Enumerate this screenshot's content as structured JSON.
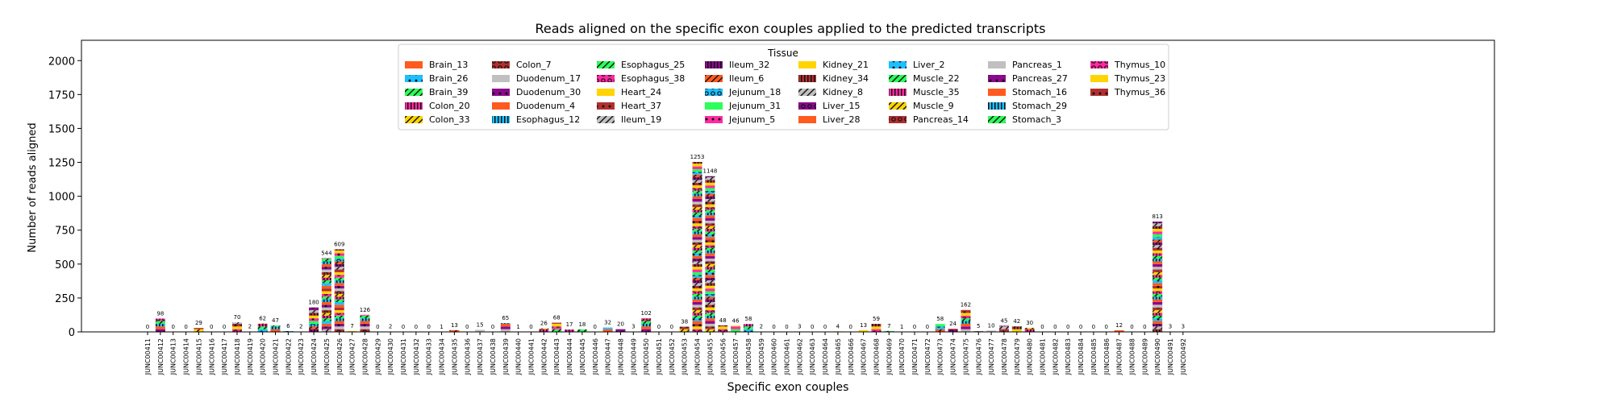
{
  "chart_data": {
    "type": "bar",
    "title": "Reads aligned on the specific exon couples applied to the predicted transcripts",
    "xlabel": "Specific exon couples",
    "ylabel": "Number of reads aligned",
    "ylim": [
      0,
      2150
    ],
    "yticks": [
      0,
      250,
      500,
      750,
      1000,
      1250,
      1500,
      1750,
      2000
    ],
    "grid": false,
    "stacked": true,
    "legend": {
      "title": "Tissue",
      "placement": "top-center",
      "entries": [
        {
          "name": "Brain_13",
          "color": "#ff5a1f",
          "hatch": "none"
        },
        {
          "name": "Brain_26",
          "color": "#1fbfff",
          "hatch": "dot"
        },
        {
          "name": "Brain_39",
          "color": "#2bff5a",
          "hatch": "slash"
        },
        {
          "name": "Colon_20",
          "color": "#ff2aa0",
          "hatch": "bars"
        },
        {
          "name": "Colon_33",
          "color": "#ffd400",
          "hatch": "slash"
        },
        {
          "name": "Colon_7",
          "color": "#b03030",
          "hatch": "ring"
        },
        {
          "name": "Duodenum_17",
          "color": "#c0c0c0",
          "hatch": "none"
        },
        {
          "name": "Duodenum_30",
          "color": "#8b0a8b",
          "hatch": "dot"
        },
        {
          "name": "Duodenum_4",
          "color": "#ff5a1f",
          "hatch": "none"
        },
        {
          "name": "Esophagus_12",
          "color": "#1fbfff",
          "hatch": "bars"
        },
        {
          "name": "Esophagus_25",
          "color": "#2bff5a",
          "hatch": "slash"
        },
        {
          "name": "Esophagus_38",
          "color": "#ff2aa0",
          "hatch": "ring"
        },
        {
          "name": "Heart_24",
          "color": "#ffd400",
          "hatch": "none"
        },
        {
          "name": "Heart_37",
          "color": "#b03030",
          "hatch": "dot"
        },
        {
          "name": "Ileum_19",
          "color": "#c0c0c0",
          "hatch": "slash"
        },
        {
          "name": "Ileum_32",
          "color": "#8b0a8b",
          "hatch": "bars"
        },
        {
          "name": "Ileum_6",
          "color": "#ff5a1f",
          "hatch": "slash"
        },
        {
          "name": "Jejunum_18",
          "color": "#1fbfff",
          "hatch": "ring"
        },
        {
          "name": "Jejunum_31",
          "color": "#2bff5a",
          "hatch": "none"
        },
        {
          "name": "Jejunum_5",
          "color": "#ff2aa0",
          "hatch": "dot"
        },
        {
          "name": "Kidney_21",
          "color": "#ffd400",
          "hatch": "none"
        },
        {
          "name": "Kidney_34",
          "color": "#b03030",
          "hatch": "bars"
        },
        {
          "name": "Kidney_8",
          "color": "#c0c0c0",
          "hatch": "slash"
        },
        {
          "name": "Liver_15",
          "color": "#8b0a8b",
          "hatch": "ring"
        },
        {
          "name": "Liver_28",
          "color": "#ff5a1f",
          "hatch": "none"
        },
        {
          "name": "Liver_2",
          "color": "#1fbfff",
          "hatch": "dot"
        },
        {
          "name": "Muscle_22",
          "color": "#2bff5a",
          "hatch": "slash"
        },
        {
          "name": "Muscle_35",
          "color": "#ff2aa0",
          "hatch": "bars"
        },
        {
          "name": "Muscle_9",
          "color": "#ffd400",
          "hatch": "slash"
        },
        {
          "name": "Pancreas_14",
          "color": "#b03030",
          "hatch": "ring"
        },
        {
          "name": "Pancreas_1",
          "color": "#c0c0c0",
          "hatch": "none"
        },
        {
          "name": "Pancreas_27",
          "color": "#8b0a8b",
          "hatch": "dot"
        },
        {
          "name": "Stomach_16",
          "color": "#ff5a1f",
          "hatch": "none"
        },
        {
          "name": "Stomach_29",
          "color": "#1fbfff",
          "hatch": "bars"
        },
        {
          "name": "Stomach_3",
          "color": "#2bff5a",
          "hatch": "slash"
        },
        {
          "name": "Thymus_10",
          "color": "#ff2aa0",
          "hatch": "ring"
        },
        {
          "name": "Thymus_23",
          "color": "#ffd400",
          "hatch": "none"
        },
        {
          "name": "Thymus_36",
          "color": "#b03030",
          "hatch": "dot"
        }
      ]
    },
    "categories": [
      "JUNC00411",
      "JUNC00412",
      "JUNC00413",
      "JUNC00414",
      "JUNC00415",
      "JUNC00416",
      "JUNC00417",
      "JUNC00418",
      "JUNC00419",
      "JUNC00420",
      "JUNC00421",
      "JUNC00422",
      "JUNC00423",
      "JUNC00424",
      "JUNC00425",
      "JUNC00426",
      "JUNC00427",
      "JUNC00428",
      "JUNC00429",
      "JUNC00430",
      "JUNC00431",
      "JUNC00432",
      "JUNC00433",
      "JUNC00434",
      "JUNC00435",
      "JUNC00436",
      "JUNC00437",
      "JUNC00438",
      "JUNC00439",
      "JUNC00440",
      "JUNC00441",
      "JUNC00442",
      "JUNC00443",
      "JUNC00444",
      "JUNC00445",
      "JUNC00446",
      "JUNC00447",
      "JUNC00448",
      "JUNC00449",
      "JUNC00450",
      "JUNC00451",
      "JUNC00452",
      "JUNC00453",
      "JUNC00454",
      "JUNC00455",
      "JUNC00456",
      "JUNC00457",
      "JUNC00458",
      "JUNC00459",
      "JUNC00460",
      "JUNC00461",
      "JUNC00462",
      "JUNC00463",
      "JUNC00464",
      "JUNC00465",
      "JUNC00466",
      "JUNC00467",
      "JUNC00468",
      "JUNC00469",
      "JUNC00470",
      "JUNC00471",
      "JUNC00472",
      "JUNC00473",
      "JUNC00474",
      "JUNC00475",
      "JUNC00476",
      "JUNC00477",
      "JUNC00478",
      "JUNC00479",
      "JUNC00480",
      "JUNC00481",
      "JUNC00482",
      "JUNC00483",
      "JUNC00484",
      "JUNC00485",
      "JUNC00486",
      "JUNC00487",
      "JUNC00488",
      "JUNC00489",
      "JUNC00490",
      "JUNC00491",
      "JUNC00492"
    ],
    "totals": [
      0,
      98,
      0,
      0,
      29,
      0,
      0,
      70,
      2,
      62,
      47,
      6,
      2,
      180,
      544,
      609,
      7,
      126,
      0,
      2,
      0,
      0,
      0,
      1,
      13,
      0,
      15,
      0,
      65,
      1,
      0,
      26,
      68,
      17,
      18,
      0,
      32,
      20,
      3,
      102,
      0,
      0,
      38,
      1253,
      1148,
      48,
      46,
      58,
      2,
      0,
      0,
      3,
      0,
      0,
      4,
      0,
      13,
      59,
      7,
      1,
      0,
      0,
      58,
      24,
      162,
      5,
      10,
      45,
      42,
      30,
      0,
      0,
      0,
      0,
      0,
      0,
      12,
      0,
      0,
      813,
      3,
      3
    ]
  }
}
